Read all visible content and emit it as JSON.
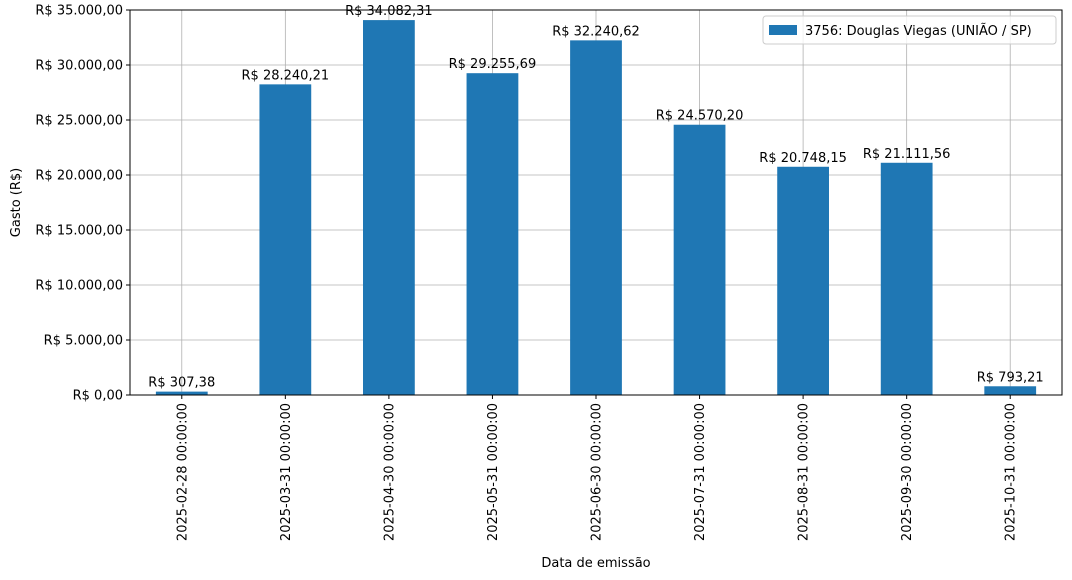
{
  "chart_data": {
    "type": "bar",
    "title": "",
    "xlabel": "Data de emissão",
    "ylabel": "Gasto (R$)",
    "ylim": [
      0,
      35000
    ],
    "yticks": [
      0,
      5000,
      10000,
      15000,
      20000,
      25000,
      30000,
      35000
    ],
    "ytick_labels": [
      "R$ 0,00",
      "R$ 5.000,00",
      "R$ 10.000,00",
      "R$ 15.000,00",
      "R$ 20.000,00",
      "R$ 25.000,00",
      "R$ 30.000,00",
      "R$ 35.000,00"
    ],
    "grid": true,
    "legend_position": "top-right",
    "categories": [
      "2025-02-28 00:00:00",
      "2025-03-31 00:00:00",
      "2025-04-30 00:00:00",
      "2025-05-31 00:00:00",
      "2025-06-30 00:00:00",
      "2025-07-31 00:00:00",
      "2025-08-31 00:00:00",
      "2025-09-30 00:00:00",
      "2025-10-31 00:00:00"
    ],
    "series": [
      {
        "name": "3756: Douglas Viegas (UNIÃO / SP)",
        "color": "#1f77b4",
        "values": [
          307.38,
          28240.21,
          34082.31,
          29255.69,
          32240.62,
          24570.2,
          20748.15,
          21111.56,
          793.21
        ],
        "data_labels": [
          "R$ 307,38",
          "R$ 28.240,21",
          "R$ 34.082,31",
          "R$ 29.255,69",
          "R$ 32.240,62",
          "R$ 24.570,20",
          "R$ 20.748,15",
          "R$ 21.111,56",
          "R$ 793,21"
        ]
      }
    ]
  }
}
